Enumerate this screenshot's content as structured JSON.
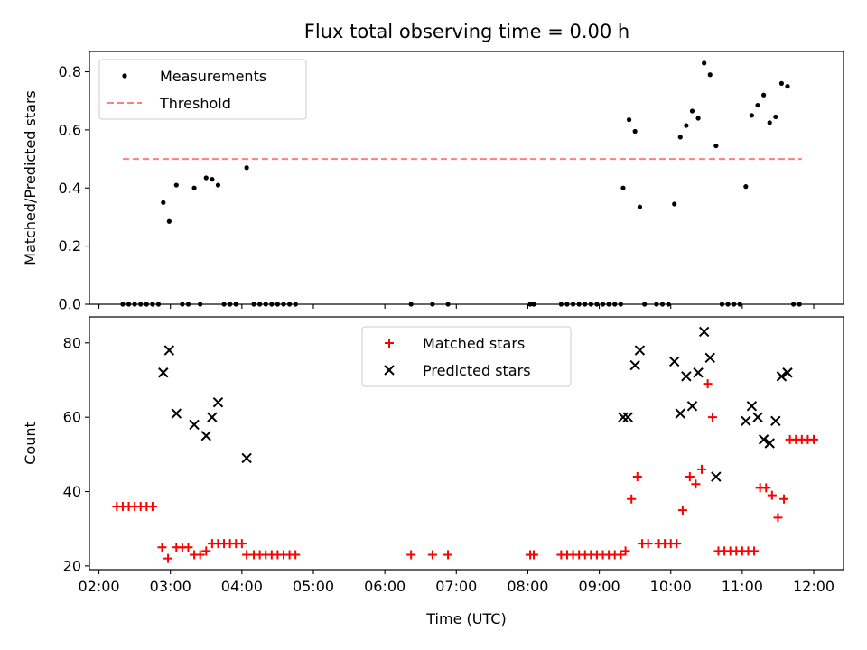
{
  "figure": {
    "title": "Flux total observing time = 0.00 h"
  },
  "chart_data": [
    {
      "type": "scatter",
      "ylabel": "Matched/Predicted stars",
      "ylim": [
        0,
        0.87
      ],
      "yticks": [
        "0.0",
        "0.2",
        "0.4",
        "0.6",
        "0.8"
      ],
      "xlim": [
        "01:52",
        "12:25"
      ],
      "x_tick_labels_shown": false,
      "legend": {
        "placement": "upper-left",
        "entries": [
          "Measurements",
          "Threshold"
        ]
      },
      "series": [
        {
          "name": "Measurements",
          "kind": "points",
          "color": "#000000",
          "points": [
            [
              "02:20",
              0
            ],
            [
              "02:25",
              0
            ],
            [
              "02:30",
              0
            ],
            [
              "02:35",
              0
            ],
            [
              "02:40",
              0
            ],
            [
              "02:45",
              0
            ],
            [
              "02:50",
              0
            ],
            [
              "02:54",
              0.35
            ],
            [
              "02:59",
              0.285
            ],
            [
              "03:05",
              0.41
            ],
            [
              "03:10",
              0
            ],
            [
              "03:15",
              0
            ],
            [
              "03:20",
              0.4
            ],
            [
              "03:25",
              0
            ],
            [
              "03:30",
              0.435
            ],
            [
              "03:35",
              0.43
            ],
            [
              "03:40",
              0.41
            ],
            [
              "03:45",
              0
            ],
            [
              "03:50",
              0
            ],
            [
              "03:55",
              0
            ],
            [
              "04:04",
              0.47
            ],
            [
              "04:10",
              0
            ],
            [
              "04:15",
              0
            ],
            [
              "04:20",
              0
            ],
            [
              "04:25",
              0
            ],
            [
              "04:30",
              0
            ],
            [
              "04:35",
              0
            ],
            [
              "04:40",
              0
            ],
            [
              "04:45",
              0
            ],
            [
              "06:22",
              0
            ],
            [
              "06:40",
              0
            ],
            [
              "06:53",
              0
            ],
            [
              "08:02",
              0
            ],
            [
              "08:05",
              0
            ],
            [
              "08:28",
              0
            ],
            [
              "08:33",
              0
            ],
            [
              "08:38",
              0
            ],
            [
              "08:43",
              0
            ],
            [
              "08:48",
              0
            ],
            [
              "08:53",
              0
            ],
            [
              "08:58",
              0
            ],
            [
              "09:03",
              0
            ],
            [
              "09:08",
              0
            ],
            [
              "09:13",
              0
            ],
            [
              "09:18",
              0
            ],
            [
              "09:20",
              0.4
            ],
            [
              "09:25",
              0.635
            ],
            [
              "09:30",
              0.595
            ],
            [
              "09:34",
              0.335
            ],
            [
              "09:38",
              0
            ],
            [
              "09:48",
              0
            ],
            [
              "09:53",
              0
            ],
            [
              "09:58",
              0
            ],
            [
              "10:03",
              0.345
            ],
            [
              "10:08",
              0.575
            ],
            [
              "10:13",
              0.615
            ],
            [
              "10:18",
              0.665
            ],
            [
              "10:23",
              0.64
            ],
            [
              "10:28",
              0.83
            ],
            [
              "10:33",
              0.79
            ],
            [
              "10:38",
              0.545
            ],
            [
              "10:43",
              0
            ],
            [
              "10:48",
              0
            ],
            [
              "10:53",
              0
            ],
            [
              "10:58",
              0
            ],
            [
              "11:03",
              0.405
            ],
            [
              "11:08",
              0.65
            ],
            [
              "11:13",
              0.685
            ],
            [
              "11:18",
              0.72
            ],
            [
              "11:23",
              0.625
            ],
            [
              "11:28",
              0.645
            ],
            [
              "11:33",
              0.76
            ],
            [
              "11:38",
              0.75
            ],
            [
              "11:43",
              0
            ],
            [
              "11:48",
              0
            ]
          ]
        },
        {
          "name": "Threshold",
          "kind": "dashed-line",
          "color": "#ff7f7f",
          "x": [
            "02:20",
            "11:50"
          ],
          "y": 0.5
        }
      ]
    },
    {
      "type": "scatter",
      "ylabel": "Count",
      "xlabel": "Time (UTC)",
      "ylim": [
        19,
        87
      ],
      "yticks": [
        "20",
        "40",
        "60",
        "80"
      ],
      "xlim": [
        "01:52",
        "12:25"
      ],
      "xticks": [
        "02:00",
        "03:00",
        "04:00",
        "05:00",
        "06:00",
        "07:00",
        "08:00",
        "09:00",
        "10:00",
        "11:00",
        "12:00"
      ],
      "legend": {
        "placement": "upper-center",
        "entries": [
          "Matched stars",
          "Predicted stars"
        ]
      },
      "series": [
        {
          "name": "Matched stars",
          "marker": "plus",
          "color": "#ff0000",
          "points": [
            [
              "02:15",
              36
            ],
            [
              "02:20",
              36
            ],
            [
              "02:25",
              36
            ],
            [
              "02:30",
              36
            ],
            [
              "02:35",
              36
            ],
            [
              "02:40",
              36
            ],
            [
              "02:45",
              36
            ],
            [
              "02:53",
              25
            ],
            [
              "02:58",
              22
            ],
            [
              "03:05",
              25
            ],
            [
              "03:10",
              25
            ],
            [
              "03:15",
              25
            ],
            [
              "03:20",
              23
            ],
            [
              "03:25",
              23
            ],
            [
              "03:30",
              24
            ],
            [
              "03:35",
              26
            ],
            [
              "03:40",
              26
            ],
            [
              "03:45",
              26
            ],
            [
              "03:50",
              26
            ],
            [
              "03:55",
              26
            ],
            [
              "04:00",
              26
            ],
            [
              "04:04",
              23
            ],
            [
              "04:10",
              23
            ],
            [
              "04:15",
              23
            ],
            [
              "04:20",
              23
            ],
            [
              "04:25",
              23
            ],
            [
              "04:30",
              23
            ],
            [
              "04:35",
              23
            ],
            [
              "04:40",
              23
            ],
            [
              "04:45",
              23
            ],
            [
              "06:22",
              23
            ],
            [
              "06:40",
              23
            ],
            [
              "06:53",
              23
            ],
            [
              "08:02",
              23
            ],
            [
              "08:05",
              23
            ],
            [
              "08:28",
              23
            ],
            [
              "08:33",
              23
            ],
            [
              "08:38",
              23
            ],
            [
              "08:43",
              23
            ],
            [
              "08:48",
              23
            ],
            [
              "08:53",
              23
            ],
            [
              "08:58",
              23
            ],
            [
              "09:03",
              23
            ],
            [
              "09:08",
              23
            ],
            [
              "09:13",
              23
            ],
            [
              "09:18",
              23
            ],
            [
              "09:22",
              24
            ],
            [
              "09:27",
              38
            ],
            [
              "09:32",
              44
            ],
            [
              "09:36",
              26
            ],
            [
              "09:41",
              26
            ],
            [
              "09:50",
              26
            ],
            [
              "09:55",
              26
            ],
            [
              "10:00",
              26
            ],
            [
              "10:05",
              26
            ],
            [
              "10:10",
              35
            ],
            [
              "10:16",
              44
            ],
            [
              "10:21",
              42
            ],
            [
              "10:26",
              46
            ],
            [
              "10:31",
              69
            ],
            [
              "10:35",
              60
            ],
            [
              "10:40",
              24
            ],
            [
              "10:45",
              24
            ],
            [
              "10:50",
              24
            ],
            [
              "10:55",
              24
            ],
            [
              "11:00",
              24
            ],
            [
              "11:05",
              24
            ],
            [
              "11:10",
              24
            ],
            [
              "11:15",
              41
            ],
            [
              "11:20",
              41
            ],
            [
              "11:25",
              39
            ],
            [
              "11:30",
              33
            ],
            [
              "11:35",
              38
            ],
            [
              "11:40",
              54
            ],
            [
              "11:45",
              54
            ],
            [
              "11:50",
              54
            ],
            [
              "11:55",
              54
            ],
            [
              "12:00",
              54
            ]
          ]
        },
        {
          "name": "Predicted stars",
          "marker": "x",
          "color": "#000000",
          "points": [
            [
              "02:54",
              72
            ],
            [
              "02:59",
              78
            ],
            [
              "03:05",
              61
            ],
            [
              "03:20",
              58
            ],
            [
              "03:30",
              55
            ],
            [
              "03:35",
              60
            ],
            [
              "03:40",
              64
            ],
            [
              "04:04",
              49
            ],
            [
              "09:20",
              60
            ],
            [
              "09:24",
              60
            ],
            [
              "09:30",
              74
            ],
            [
              "09:34",
              78
            ],
            [
              "10:03",
              75
            ],
            [
              "10:08",
              61
            ],
            [
              "10:13",
              71
            ],
            [
              "10:18",
              63
            ],
            [
              "10:23",
              72
            ],
            [
              "10:28",
              83
            ],
            [
              "10:33",
              76
            ],
            [
              "10:38",
              44
            ],
            [
              "11:03",
              59
            ],
            [
              "11:08",
              63
            ],
            [
              "11:13",
              60
            ],
            [
              "11:18",
              54
            ],
            [
              "11:23",
              53
            ],
            [
              "11:28",
              59
            ],
            [
              "11:33",
              71
            ],
            [
              "11:38",
              72
            ]
          ]
        }
      ]
    }
  ]
}
